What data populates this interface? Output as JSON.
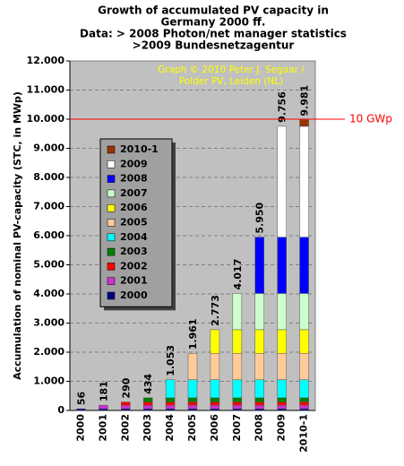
{
  "chart_data": {
    "type": "stacked_bar",
    "title": [
      "Growth of accumulated PV capacity in",
      "Germany 2000 ff.",
      "Data: > 2008 Photon/net manager statistics",
      ">2009 Bundesnetzagentur"
    ],
    "annotation": [
      "Graph © 2010 Peter J. Segaar /",
      "Polder PV, Leiden (NL)"
    ],
    "y_label": "Accumulation of nominal PV-capacity (STC, in MWp)",
    "categories": [
      "2000",
      "2001",
      "2002",
      "2003",
      "2004",
      "2005",
      "2006",
      "2007",
      "2008",
      "2009",
      "2010-1"
    ],
    "series": [
      {
        "name": "2000",
        "color": "#000080",
        "values": [
          56,
          56,
          56,
          56,
          56,
          56,
          56,
          56,
          56,
          56,
          56
        ]
      },
      {
        "name": "2001",
        "color": "#cc33cc",
        "values": [
          null,
          125,
          125,
          125,
          125,
          125,
          125,
          125,
          125,
          125,
          125
        ]
      },
      {
        "name": "2002",
        "color": "#ff0000",
        "values": [
          null,
          null,
          109,
          109,
          109,
          109,
          109,
          109,
          109,
          109,
          109
        ]
      },
      {
        "name": "2003",
        "color": "#008000",
        "values": [
          null,
          null,
          null,
          144,
          144,
          144,
          144,
          144,
          144,
          144,
          144
        ]
      },
      {
        "name": "2004",
        "color": "#00ffff",
        "values": [
          null,
          null,
          null,
          null,
          619,
          619,
          619,
          619,
          619,
          619,
          619
        ]
      },
      {
        "name": "2005",
        "color": "#ffcc99",
        "values": [
          null,
          null,
          null,
          null,
          null,
          908,
          908,
          908,
          908,
          908,
          908
        ]
      },
      {
        "name": "2006",
        "color": "#ffff00",
        "values": [
          null,
          null,
          null,
          null,
          null,
          null,
          812,
          812,
          812,
          812,
          812
        ]
      },
      {
        "name": "2007",
        "color": "#ccffcc",
        "values": [
          null,
          null,
          null,
          null,
          null,
          null,
          null,
          1244,
          1244,
          1244,
          1244
        ]
      },
      {
        "name": "2008",
        "color": "#0000ff",
        "values": [
          null,
          null,
          null,
          null,
          null,
          null,
          null,
          null,
          1933,
          1933,
          1933
        ]
      },
      {
        "name": "2009",
        "color": "#ffffff",
        "values": [
          null,
          null,
          null,
          null,
          null,
          null,
          null,
          null,
          null,
          3806,
          3806
        ]
      },
      {
        "name": "2010-1",
        "color": "#993300",
        "values": [
          null,
          null,
          null,
          null,
          null,
          null,
          null,
          null,
          null,
          null,
          225
        ]
      }
    ],
    "totals": {
      "values": [
        56,
        181,
        290,
        434,
        1053,
        1961,
        2773,
        4017,
        5950,
        9756,
        9981
      ],
      "value_labels": [
        "56",
        "181",
        "290",
        "434",
        "1.053",
        "1.961",
        "2.773",
        "4.017",
        "5.950",
        "9.756",
        "9.981"
      ]
    },
    "reference_line": {
      "value": 10000,
      "label": "10 GWp",
      "color": "#ff0000"
    },
    "ylim": [
      0,
      12000
    ],
    "yticks": [
      0,
      {
        "value": 1000,
        "label": "1.000"
      },
      {
        "value": 2000,
        "label": "2.000"
      },
      {
        "value": 3000,
        "label": "3.000"
      },
      {
        "value": 4000,
        "label": "4.000"
      },
      {
        "value": 5000,
        "label": "5.000"
      },
      {
        "value": 6000,
        "label": "6.000"
      },
      {
        "value": 7000,
        "label": "7.000"
      },
      {
        "value": 8000,
        "label": "8.000"
      },
      {
        "value": 9000,
        "label": "9.000"
      },
      {
        "value": 10000,
        "label": "10.000"
      },
      {
        "value": 11000,
        "label": "11.000"
      },
      {
        "value": 12000,
        "label": "12.000"
      }
    ],
    "grid": true,
    "legend": "left"
  }
}
